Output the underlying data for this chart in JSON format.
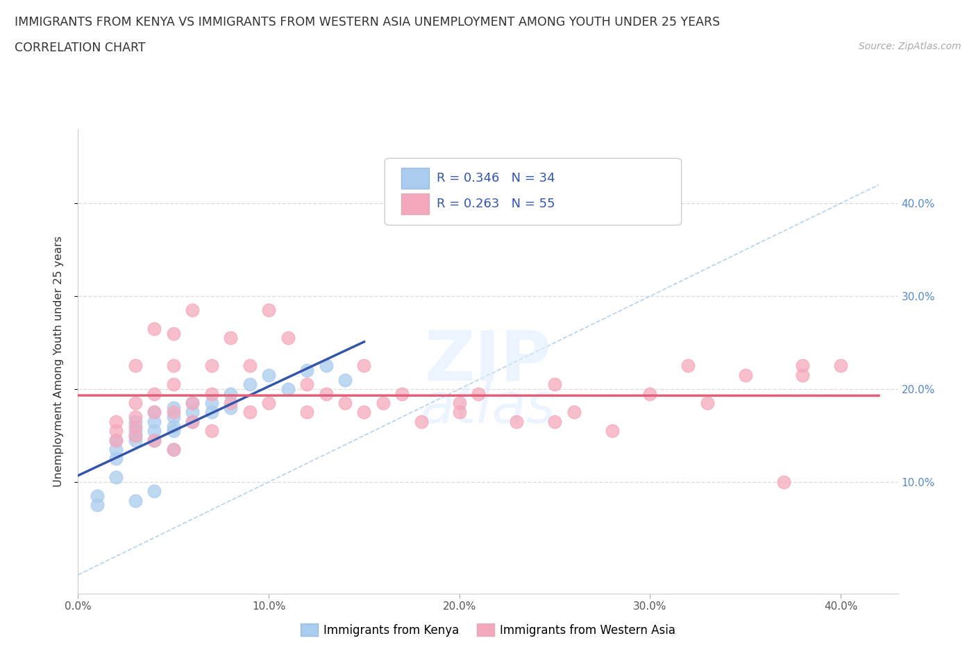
{
  "title_line1": "IMMIGRANTS FROM KENYA VS IMMIGRANTS FROM WESTERN ASIA UNEMPLOYMENT AMONG YOUTH UNDER 25 YEARS",
  "title_line2": "CORRELATION CHART",
  "source": "Source: ZipAtlas.com",
  "ylabel": "Unemployment Among Youth under 25 years",
  "xlim": [
    0.0,
    0.43
  ],
  "ylim": [
    -0.02,
    0.48
  ],
  "xticks": [
    0.0,
    0.1,
    0.2,
    0.3,
    0.4
  ],
  "yticks": [
    0.1,
    0.2,
    0.3,
    0.4
  ],
  "ytick_labels_right": [
    "10.0%",
    "20.0%",
    "30.0%",
    "40.0%"
  ],
  "xtick_labels": [
    "0.0%",
    "10.0%",
    "20.0%",
    "30.0%",
    "40.0%"
  ],
  "kenya_color": "#aaccee",
  "western_asia_color": "#f5a8bc",
  "kenya_line_color": "#3355aa",
  "western_asia_line_color": "#e0607a",
  "dash_line_color": "#a0c8e8",
  "kenya_R": 0.346,
  "kenya_N": 34,
  "western_asia_R": 0.263,
  "western_asia_N": 55,
  "legend_label_kenya": "Immigrants from Kenya",
  "legend_label_western_asia": "Immigrants from Western Asia",
  "kenya_x": [
    0.01,
    0.01,
    0.02,
    0.02,
    0.02,
    0.02,
    0.03,
    0.03,
    0.03,
    0.03,
    0.03,
    0.04,
    0.04,
    0.04,
    0.04,
    0.04,
    0.05,
    0.05,
    0.05,
    0.05,
    0.05,
    0.06,
    0.06,
    0.06,
    0.07,
    0.07,
    0.08,
    0.08,
    0.09,
    0.1,
    0.11,
    0.12,
    0.13,
    0.14
  ],
  "kenya_y": [
    0.085,
    0.075,
    0.145,
    0.135,
    0.125,
    0.105,
    0.165,
    0.155,
    0.15,
    0.145,
    0.08,
    0.175,
    0.165,
    0.155,
    0.145,
    0.09,
    0.18,
    0.17,
    0.16,
    0.155,
    0.135,
    0.185,
    0.175,
    0.165,
    0.185,
    0.175,
    0.195,
    0.18,
    0.205,
    0.215,
    0.2,
    0.22,
    0.225,
    0.21
  ],
  "western_asia_x": [
    0.02,
    0.02,
    0.02,
    0.03,
    0.03,
    0.03,
    0.03,
    0.03,
    0.04,
    0.04,
    0.04,
    0.04,
    0.05,
    0.05,
    0.05,
    0.05,
    0.05,
    0.06,
    0.06,
    0.06,
    0.07,
    0.07,
    0.07,
    0.08,
    0.08,
    0.09,
    0.09,
    0.1,
    0.1,
    0.11,
    0.12,
    0.12,
    0.13,
    0.14,
    0.15,
    0.15,
    0.16,
    0.17,
    0.18,
    0.2,
    0.2,
    0.21,
    0.23,
    0.25,
    0.25,
    0.26,
    0.28,
    0.3,
    0.32,
    0.33,
    0.35,
    0.37,
    0.38,
    0.38,
    0.4
  ],
  "western_asia_y": [
    0.165,
    0.155,
    0.145,
    0.225,
    0.185,
    0.17,
    0.16,
    0.15,
    0.265,
    0.195,
    0.175,
    0.145,
    0.225,
    0.205,
    0.175,
    0.135,
    0.26,
    0.285,
    0.185,
    0.165,
    0.225,
    0.195,
    0.155,
    0.255,
    0.185,
    0.225,
    0.175,
    0.285,
    0.185,
    0.255,
    0.205,
    0.175,
    0.195,
    0.185,
    0.225,
    0.175,
    0.185,
    0.195,
    0.165,
    0.185,
    0.175,
    0.195,
    0.165,
    0.205,
    0.165,
    0.175,
    0.155,
    0.195,
    0.225,
    0.185,
    0.215,
    0.1,
    0.225,
    0.215,
    0.225
  ]
}
